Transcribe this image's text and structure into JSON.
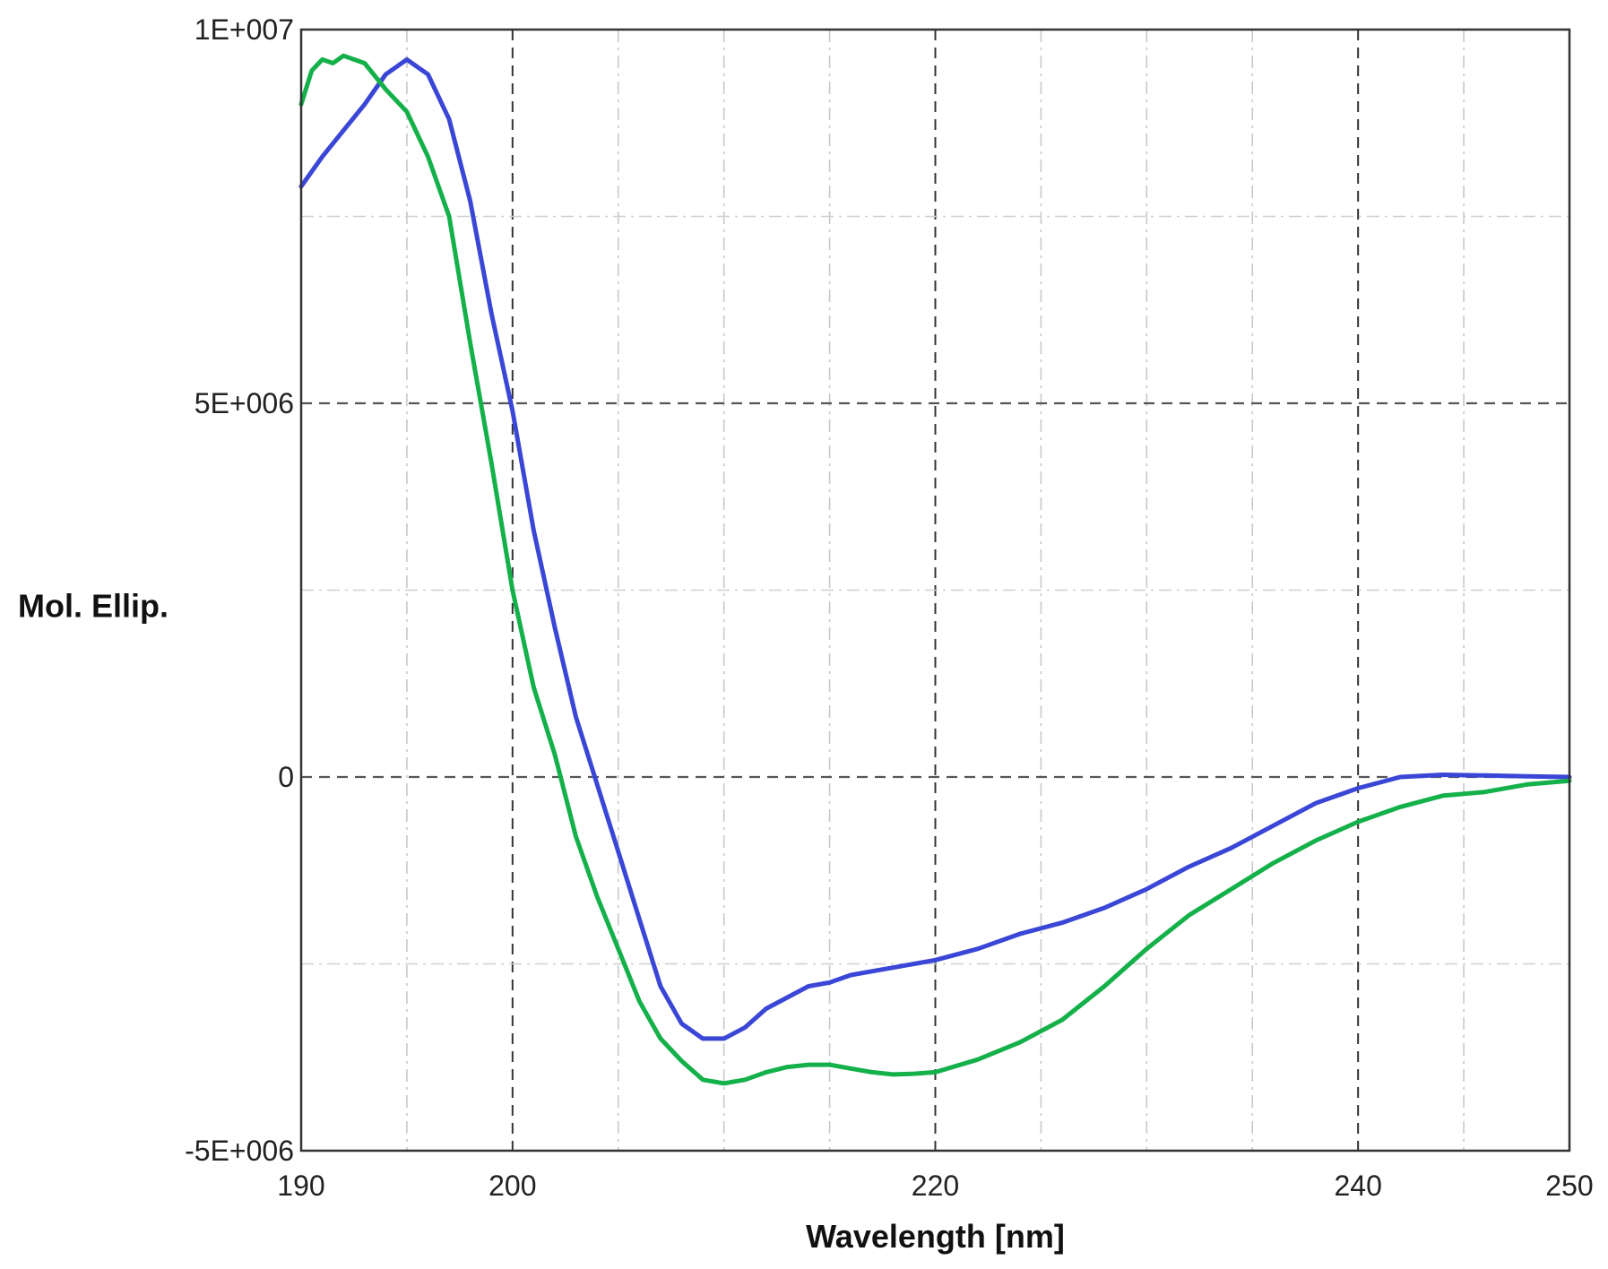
{
  "chart_data": {
    "type": "line",
    "title": "",
    "xlabel": "Wavelength [nm]",
    "ylabel": "Mol. Ellip.",
    "xlim": [
      190,
      250
    ],
    "ylim": [
      -5000000,
      10000000
    ],
    "x_ticks": [
      190,
      200,
      220,
      240,
      250
    ],
    "x_tick_labels": [
      "190",
      "200",
      "220",
      "240",
      "250"
    ],
    "y_ticks": [
      -5000000,
      0,
      5000000,
      10000000
    ],
    "y_tick_labels": [
      "-5E+006",
      "0",
      "5E+006",
      "1E+007"
    ],
    "grid": true,
    "legend": "none",
    "series": [
      {
        "color": "#3a46d6",
        "points": [
          [
            190,
            7900000
          ],
          [
            191,
            8300000
          ],
          [
            192,
            8650000
          ],
          [
            193,
            9000000
          ],
          [
            194,
            9400000
          ],
          [
            195,
            9600000
          ],
          [
            196,
            9400000
          ],
          [
            197,
            8800000
          ],
          [
            198,
            7700000
          ],
          [
            199,
            6200000
          ],
          [
            200,
            4900000
          ],
          [
            201,
            3300000
          ],
          [
            202,
            2000000
          ],
          [
            203,
            800000
          ],
          [
            204,
            -100000
          ],
          [
            205,
            -1000000
          ],
          [
            206,
            -1900000
          ],
          [
            207,
            -2800000
          ],
          [
            208,
            -3300000
          ],
          [
            209,
            -3500000
          ],
          [
            210,
            -3500000
          ],
          [
            211,
            -3350000
          ],
          [
            212,
            -3100000
          ],
          [
            213,
            -2950000
          ],
          [
            214,
            -2800000
          ],
          [
            215,
            -2750000
          ],
          [
            216,
            -2650000
          ],
          [
            217,
            -2600000
          ],
          [
            218,
            -2550000
          ],
          [
            219,
            -2500000
          ],
          [
            220,
            -2450000
          ],
          [
            222,
            -2300000
          ],
          [
            224,
            -2100000
          ],
          [
            226,
            -1950000
          ],
          [
            228,
            -1750000
          ],
          [
            230,
            -1500000
          ],
          [
            232,
            -1200000
          ],
          [
            234,
            -950000
          ],
          [
            236,
            -650000
          ],
          [
            238,
            -350000
          ],
          [
            240,
            -150000
          ],
          [
            242,
            0
          ],
          [
            244,
            30000
          ],
          [
            246,
            20000
          ],
          [
            248,
            10000
          ],
          [
            250,
            0
          ]
        ]
      },
      {
        "color": "#14b04a",
        "points": [
          [
            190,
            9000000
          ],
          [
            190.5,
            9450000
          ],
          [
            191,
            9600000
          ],
          [
            191.5,
            9550000
          ],
          [
            192,
            9650000
          ],
          [
            192.5,
            9600000
          ],
          [
            193,
            9550000
          ],
          [
            194,
            9200000
          ],
          [
            195,
            8900000
          ],
          [
            196,
            8300000
          ],
          [
            197,
            7500000
          ],
          [
            198,
            5800000
          ],
          [
            199,
            4200000
          ],
          [
            200,
            2500000
          ],
          [
            201,
            1200000
          ],
          [
            202,
            300000
          ],
          [
            203,
            -800000
          ],
          [
            204,
            -1600000
          ],
          [
            205,
            -2300000
          ],
          [
            206,
            -3000000
          ],
          [
            207,
            -3500000
          ],
          [
            208,
            -3800000
          ],
          [
            209,
            -4050000
          ],
          [
            210,
            -4100000
          ],
          [
            211,
            -4050000
          ],
          [
            212,
            -3950000
          ],
          [
            213,
            -3880000
          ],
          [
            214,
            -3850000
          ],
          [
            215,
            -3850000
          ],
          [
            216,
            -3900000
          ],
          [
            217,
            -3950000
          ],
          [
            218,
            -3980000
          ],
          [
            219,
            -3970000
          ],
          [
            220,
            -3950000
          ],
          [
            222,
            -3780000
          ],
          [
            224,
            -3550000
          ],
          [
            226,
            -3250000
          ],
          [
            228,
            -2800000
          ],
          [
            230,
            -2300000
          ],
          [
            232,
            -1850000
          ],
          [
            234,
            -1500000
          ],
          [
            236,
            -1150000
          ],
          [
            238,
            -850000
          ],
          [
            240,
            -600000
          ],
          [
            242,
            -400000
          ],
          [
            244,
            -250000
          ],
          [
            246,
            -200000
          ],
          [
            248,
            -100000
          ],
          [
            250,
            -50000
          ]
        ]
      }
    ]
  }
}
